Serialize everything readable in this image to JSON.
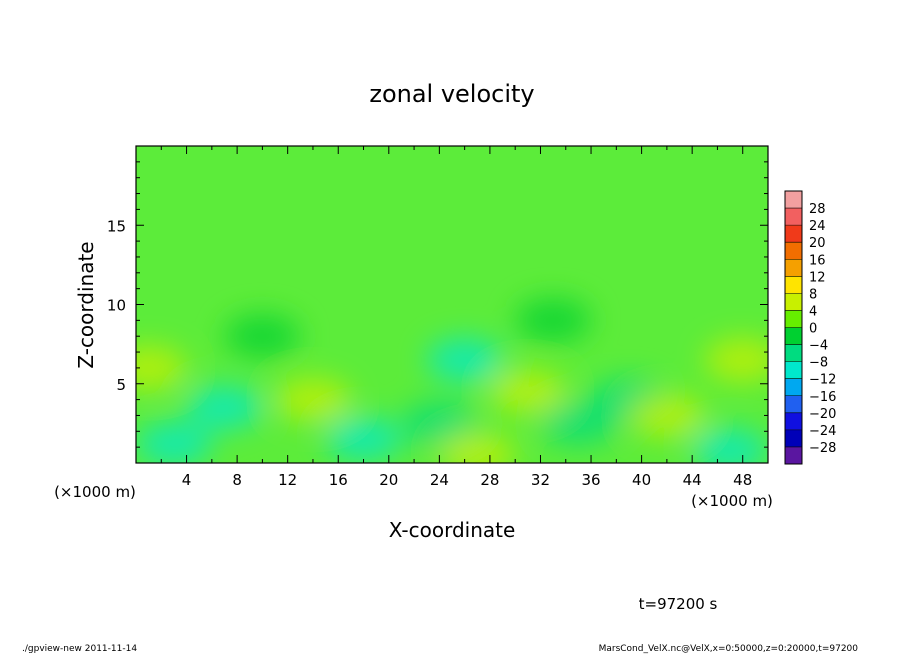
{
  "chart_data": {
    "type": "heatmap",
    "title": "zonal velocity",
    "xlabel": "X-coordinate",
    "ylabel": "Z-coordinate",
    "x_unit": "(×1000 m)",
    "z_unit": "(×1000 m)",
    "xlim": [
      0,
      50
    ],
    "ylim": [
      0,
      20
    ],
    "x_ticks": [
      "4",
      "8",
      "12",
      "16",
      "20",
      "24",
      "28",
      "32",
      "36",
      "40",
      "44",
      "48"
    ],
    "y_ticks": [
      "5",
      "10",
      "15"
    ],
    "colorbar": {
      "labels": [
        "28",
        "24",
        "20",
        "16",
        "12",
        "8",
        "4",
        "0",
        "−4",
        "−8",
        "−12",
        "−16",
        "−20",
        "−24",
        "−28"
      ],
      "colors": [
        "#f2a0a0",
        "#f26060",
        "#f03a1a",
        "#f26e00",
        "#f5a000",
        "#ffe400",
        "#c8f000",
        "#66ee00",
        "#00d030",
        "#00dc80",
        "#00e8cc",
        "#00a8f0",
        "#2060f0",
        "#1010e0",
        "#0000b8",
        "#5a16a0"
      ]
    },
    "field_description_ranges": [
      -10,
      10
    ],
    "blobs": [
      {
        "x": 7,
        "z": 3.5,
        "v": -8
      },
      {
        "x": 3,
        "z": 1.2,
        "v": -10
      },
      {
        "x": 14,
        "z": 4,
        "v": 6
      },
      {
        "x": 18,
        "z": 1.5,
        "v": -9
      },
      {
        "x": 26,
        "z": 6.5,
        "v": -9
      },
      {
        "x": 24,
        "z": 2.5,
        "v": -6
      },
      {
        "x": 27,
        "z": 0.5,
        "v": 8
      },
      {
        "x": 31,
        "z": 4.5,
        "v": 5
      },
      {
        "x": 35,
        "z": 2.5,
        "v": -6
      },
      {
        "x": 39,
        "z": 4,
        "v": -6
      },
      {
        "x": 42,
        "z": 3,
        "v": 5
      },
      {
        "x": 48,
        "z": 6.5,
        "v": 6
      },
      {
        "x": 47,
        "z": 0.8,
        "v": -8
      },
      {
        "x": 1,
        "z": 6,
        "v": 6
      },
      {
        "x": 10,
        "z": 8,
        "v": -3
      },
      {
        "x": 33,
        "z": 9,
        "v": -3
      }
    ]
  },
  "annotations": {
    "time": "t=97200 s",
    "footer_left": "./gpview-new  2011-11-14",
    "footer_right": "MarsCond_VelX.nc@VelX,x=0:50000,z=0:20000,t=97200"
  }
}
